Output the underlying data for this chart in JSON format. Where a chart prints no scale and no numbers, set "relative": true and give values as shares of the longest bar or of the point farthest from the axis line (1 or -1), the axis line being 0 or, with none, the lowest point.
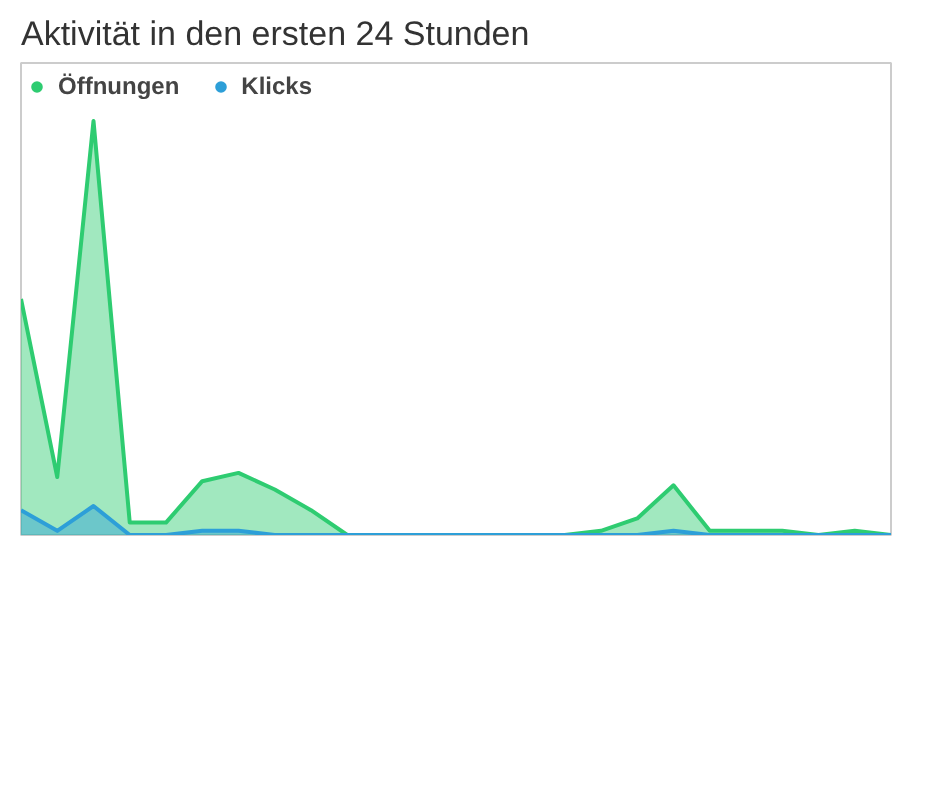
{
  "chart_data": {
    "type": "area",
    "title": "Aktivität in den ersten 24 Stunden",
    "relative": true,
    "legend": "top left",
    "categories": [
      null,
      null,
      null,
      null,
      null,
      null,
      null,
      null,
      null,
      null,
      null,
      null,
      null,
      null,
      null,
      null,
      null,
      null,
      null,
      null,
      null,
      null,
      null,
      null,
      null
    ],
    "series": [
      {
        "name": "Öffnungen",
        "color": "#2ecc71",
        "values": [
          0.57,
          0.14,
          1.0,
          0.03,
          0.03,
          0.13,
          0.15,
          0.11,
          0.06,
          0.0,
          0.0,
          0.0,
          0.0,
          0.0,
          0.0,
          0.0,
          0.01,
          0.04,
          0.12,
          0.01,
          0.01,
          0.01,
          0.0,
          0.01,
          0.0
        ]
      },
      {
        "name": "Klicks",
        "color": "#2d9fd8",
        "values": [
          0.06,
          0.01,
          0.07,
          0.0,
          0.0,
          0.01,
          0.01,
          0.0,
          0.0,
          0.0,
          0.0,
          0.0,
          0.0,
          0.0,
          0.0,
          0.0,
          0.0,
          0.0,
          0.01,
          0.0,
          0.0,
          0.0,
          0.0,
          0.0,
          0.0
        ]
      }
    ]
  }
}
